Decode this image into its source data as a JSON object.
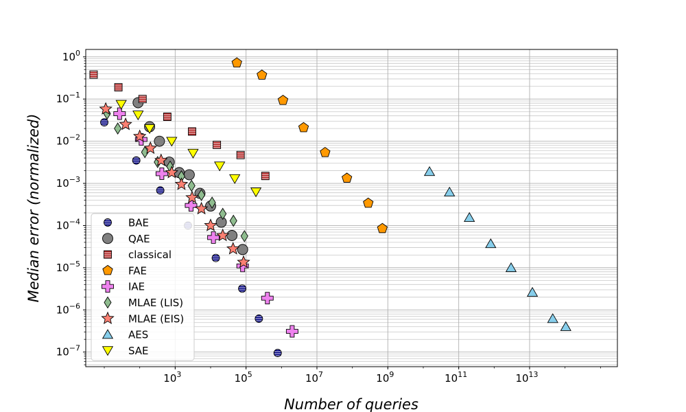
{
  "chart_data": {
    "type": "scatter",
    "xlabel": "Number of queries",
    "ylabel": "Median error (normalized)",
    "xscale": "log",
    "yscale": "log",
    "xlim": [
      3,
      3000000000000000.0
    ],
    "ylim": [
      4.5e-08,
      1.5
    ],
    "grid": {
      "major": true,
      "minor_y": true
    },
    "legend_position": "bottom-left",
    "x_ticks": [
      {
        "value": 1000,
        "base": "10",
        "exp": "3"
      },
      {
        "value": 100000,
        "base": "10",
        "exp": "5"
      },
      {
        "value": 10000000,
        "base": "10",
        "exp": "7"
      },
      {
        "value": 1000000000,
        "base": "10",
        "exp": "9"
      },
      {
        "value": 100000000000,
        "base": "10",
        "exp": "11"
      },
      {
        "value": 10000000000000,
        "base": "10",
        "exp": "13"
      }
    ],
    "y_ticks": [
      {
        "value": 1,
        "base": "10",
        "exp": "0"
      },
      {
        "value": 0.1,
        "base": "10",
        "exp": "−1"
      },
      {
        "value": 0.01,
        "base": "10",
        "exp": "−2"
      },
      {
        "value": 0.001,
        "base": "10",
        "exp": "−3"
      },
      {
        "value": 0.0001,
        "base": "10",
        "exp": "−4"
      },
      {
        "value": 1e-05,
        "base": "10",
        "exp": "−5"
      },
      {
        "value": 1e-06,
        "base": "10",
        "exp": "−6"
      },
      {
        "value": 1e-07,
        "base": "10",
        "exp": "−7"
      }
    ],
    "series": [
      {
        "name": "BAE",
        "marker": "circle-striped",
        "color": "#000080",
        "points": [
          [
            10,
            0.028
          ],
          [
            80,
            0.0035
          ],
          [
            380,
            0.00068
          ],
          [
            2300,
            0.0001
          ],
          [
            14000,
            1.7e-05
          ],
          [
            78000,
            3.2e-06
          ],
          [
            230000,
            6.2e-07
          ],
          [
            780000,
            9.5e-08
          ]
        ]
      },
      {
        "name": "QAE",
        "marker": "circle",
        "color": "#808080",
        "points": [
          [
            90,
            0.082
          ],
          [
            190,
            0.022
          ],
          [
            360,
            0.01
          ],
          [
            680,
            0.0032
          ],
          [
            1300,
            0.0018
          ],
          [
            2500,
            0.0016
          ],
          [
            5000,
            0.00058
          ],
          [
            10000,
            0.00029
          ],
          [
            20000,
            0.00012
          ],
          [
            40000,
            5.8e-05
          ],
          [
            80000,
            2.7e-05
          ]
        ]
      },
      {
        "name": "classical",
        "marker": "square-striped",
        "color": "#b22222",
        "points": [
          [
            5,
            0.38
          ],
          [
            25,
            0.19
          ],
          [
            120,
            0.1
          ],
          [
            600,
            0.038
          ],
          [
            3000,
            0.017
          ],
          [
            15000,
            0.0082
          ],
          [
            70000,
            0.0047
          ],
          [
            350000,
            0.0015
          ]
        ]
      },
      {
        "name": "FAE",
        "marker": "pentagon",
        "color": "#ff9900",
        "points": [
          [
            55000.0,
            0.72
          ],
          [
            280000.0,
            0.37
          ],
          [
            1100000.0,
            0.093
          ],
          [
            4200000.0,
            0.021
          ],
          [
            17000000.0,
            0.0054
          ],
          [
            70000000.0,
            0.00133
          ],
          [
            280000000.0,
            0.00034
          ],
          [
            700000000.0,
            8.5e-05
          ]
        ]
      },
      {
        "name": "IAE",
        "marker": "plus",
        "color": "#ee82ee",
        "points": [
          [
            27,
            0.045
          ],
          [
            110,
            0.011
          ],
          [
            420,
            0.0017
          ],
          [
            2800,
            0.0003
          ],
          [
            12000,
            5.2e-05
          ],
          [
            80000,
            1.1e-05
          ],
          [
            400000,
            1.9e-06
          ],
          [
            2000000,
            3.1e-07
          ]
        ]
      },
      {
        "name": "MLAE (LIS)",
        "marker": "diamond",
        "color": "#8fbc8f",
        "points": [
          [
            12,
            0.045
          ],
          [
            24,
            0.02
          ],
          [
            140,
            0.0055
          ],
          [
            320,
            0.0032
          ],
          [
            720,
            0.0025
          ],
          [
            1500,
            0.00147
          ],
          [
            2900,
            0.00088
          ],
          [
            5500,
            0.00053
          ],
          [
            11000,
            0.00035
          ],
          [
            22000,
            0.00019
          ],
          [
            44000,
            0.00013
          ],
          [
            90000,
            5.6e-05
          ]
        ]
      },
      {
        "name": "MLAE (EIS)",
        "marker": "star",
        "color": "#fa8072",
        "points": [
          [
            11,
            0.058
          ],
          [
            40,
            0.025
          ],
          [
            100,
            0.013
          ],
          [
            200,
            0.0068
          ],
          [
            400,
            0.0035
          ],
          [
            800,
            0.0018
          ],
          [
            1500,
            0.00095
          ],
          [
            3000,
            0.00046
          ],
          [
            5500,
            0.00025
          ],
          [
            10000,
            0.0001
          ],
          [
            22000,
            5.8e-05
          ],
          [
            43000,
            2.8e-05
          ],
          [
            85000,
            1.35e-05
          ]
        ]
      },
      {
        "name": "AES",
        "marker": "triangle-up",
        "color": "#87ceeb",
        "points": [
          [
            15000000000.0,
            0.0019
          ],
          [
            55000000000.0,
            0.00062
          ],
          [
            200000000000.0,
            0.000155
          ],
          [
            800000000000.0,
            3.7e-05
          ],
          [
            3000000000000.0,
            1e-05
          ],
          [
            12000000000000.0,
            2.6e-06
          ],
          [
            45000000000000.0,
            6.2e-07
          ],
          [
            105000000000000.0,
            4e-07
          ]
        ]
      },
      {
        "name": "SAE",
        "marker": "triangle-down",
        "color": "#ffff00",
        "points": [
          [
            30,
            0.075
          ],
          [
            90,
            0.042
          ],
          [
            190,
            0.02
          ],
          [
            800,
            0.01
          ],
          [
            3200,
            0.0052
          ],
          [
            18000,
            0.0026
          ],
          [
            48000,
            0.0013
          ],
          [
            190000,
            0.00063
          ]
        ]
      }
    ]
  }
}
